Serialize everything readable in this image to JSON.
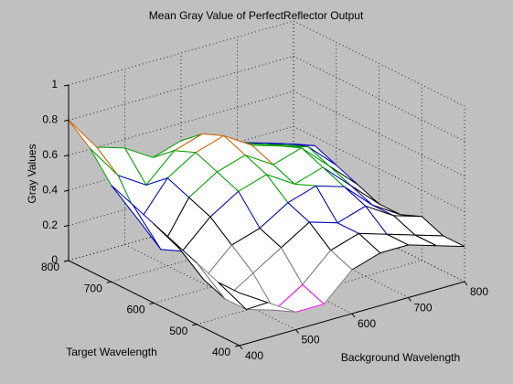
{
  "chart_data": {
    "type": "mesh3d",
    "title": "Mean Gray Value of PerfectReflector Output",
    "xlabel": "Background Wavelength",
    "ylabel": "Target Wavelength",
    "zlabel": "Gray Values",
    "x": [
      400,
      450,
      500,
      550,
      600,
      650,
      700,
      750,
      800
    ],
    "y": [
      400,
      450,
      500,
      550,
      600,
      650,
      700,
      750,
      800
    ],
    "z": [
      [
        0.3,
        0.2,
        0.1,
        0.1,
        0.25,
        0.3,
        0.3,
        0.25,
        0.2
      ],
      [
        0.3,
        0.1,
        0.05,
        0.15,
        0.3,
        0.35,
        0.3,
        0.25,
        0.2
      ],
      [
        0.35,
        0.1,
        0.2,
        0.3,
        0.4,
        0.35,
        0.4,
        0.3,
        0.25
      ],
      [
        0.4,
        0.15,
        0.3,
        0.35,
        0.45,
        0.5,
        0.45,
        0.3,
        0.2
      ],
      [
        0.45,
        0.25,
        0.4,
        0.5,
        0.55,
        0.45,
        0.5,
        0.35,
        0.2
      ],
      [
        0.5,
        0.2,
        0.45,
        0.55,
        0.6,
        0.5,
        0.55,
        0.4,
        0.25
      ],
      [
        0.55,
        0.3,
        0.5,
        0.6,
        0.65,
        0.55,
        0.5,
        0.45,
        0.3
      ],
      [
        0.7,
        0.5,
        0.4,
        0.55,
        0.6,
        0.5,
        0.45,
        0.4,
        0.35
      ],
      [
        0.8,
        0.6,
        0.55,
        0.45,
        0.5,
        0.45,
        0.4,
        0.35,
        0.3
      ]
    ],
    "colormap": [
      "#ff00ff",
      "#808080",
      "#000000",
      "#0000c0",
      "#00a000",
      "#d06000",
      "#ff9900",
      "#ffd700",
      "#c0c0c0"
    ],
    "xlim": [
      400,
      800
    ],
    "ylim": [
      400,
      800
    ],
    "zlim": [
      0,
      1
    ],
    "xticks": [
      400,
      500,
      600,
      700,
      800
    ],
    "yticks": [
      400,
      500,
      600,
      700,
      800
    ],
    "zticks": [
      0,
      0.2,
      0.4,
      0.6,
      0.8,
      1
    ],
    "grid": true
  }
}
